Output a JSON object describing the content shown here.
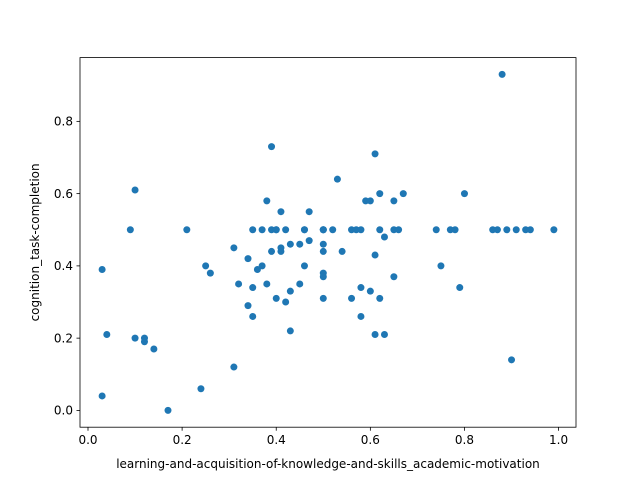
{
  "chart_data": {
    "type": "scatter",
    "title": "",
    "xlabel": "learning-and-acquisition-of-knowledge-and-skills_academic-motivation",
    "ylabel": "cognition_task-completion",
    "xlim": [
      -0.017,
      1.037
    ],
    "ylim": [
      -0.0465,
      0.9765
    ],
    "xticks": [
      0.0,
      0.2,
      0.4,
      0.6,
      0.8,
      1.0
    ],
    "xtick_labels": [
      "0.0",
      "0.2",
      "0.4",
      "0.6",
      "0.8",
      "1.0"
    ],
    "yticks": [
      0.0,
      0.2,
      0.4,
      0.6,
      0.8
    ],
    "ytick_labels": [
      "0.0",
      "0.2",
      "0.4",
      "0.6",
      "0.8"
    ],
    "grid": false,
    "marker_color": "#1f77b4",
    "x": [
      0.03,
      0.03,
      0.04,
      0.09,
      0.1,
      0.1,
      0.12,
      0.12,
      0.14,
      0.17,
      0.21,
      0.24,
      0.25,
      0.26,
      0.31,
      0.31,
      0.32,
      0.34,
      0.34,
      0.35,
      0.35,
      0.35,
      0.36,
      0.37,
      0.37,
      0.38,
      0.38,
      0.39,
      0.39,
      0.39,
      0.4,
      0.4,
      0.4,
      0.41,
      0.41,
      0.41,
      0.42,
      0.42,
      0.43,
      0.43,
      0.43,
      0.45,
      0.45,
      0.46,
      0.46,
      0.46,
      0.47,
      0.47,
      0.5,
      0.5,
      0.5,
      0.5,
      0.5,
      0.5,
      0.5,
      0.5,
      0.52,
      0.53,
      0.54,
      0.56,
      0.56,
      0.57,
      0.58,
      0.58,
      0.58,
      0.59,
      0.6,
      0.6,
      0.61,
      0.61,
      0.61,
      0.62,
      0.62,
      0.62,
      0.63,
      0.63,
      0.65,
      0.65,
      0.65,
      0.66,
      0.67,
      0.74,
      0.75,
      0.77,
      0.78,
      0.79,
      0.8,
      0.86,
      0.87,
      0.88,
      0.89,
      0.9,
      0.91,
      0.93,
      0.94,
      0.99
    ],
    "y": [
      0.04,
      0.39,
      0.21,
      0.5,
      0.2,
      0.61,
      0.19,
      0.2,
      0.17,
      0.0,
      0.5,
      0.06,
      0.4,
      0.38,
      0.12,
      0.45,
      0.35,
      0.42,
      0.29,
      0.26,
      0.34,
      0.5,
      0.39,
      0.4,
      0.5,
      0.58,
      0.35,
      0.73,
      0.5,
      0.44,
      0.31,
      0.5,
      0.5,
      0.45,
      0.55,
      0.44,
      0.3,
      0.5,
      0.22,
      0.33,
      0.46,
      0.35,
      0.46,
      0.5,
      0.4,
      0.5,
      0.47,
      0.55,
      0.5,
      0.5,
      0.44,
      0.46,
      0.38,
      0.37,
      0.31,
      0.5,
      0.5,
      0.64,
      0.44,
      0.5,
      0.31,
      0.5,
      0.5,
      0.34,
      0.26,
      0.58,
      0.58,
      0.33,
      0.71,
      0.43,
      0.21,
      0.6,
      0.5,
      0.31,
      0.48,
      0.21,
      0.58,
      0.5,
      0.37,
      0.5,
      0.6,
      0.5,
      0.4,
      0.5,
      0.5,
      0.34,
      0.6,
      0.5,
      0.5,
      0.93,
      0.5,
      0.14,
      0.5,
      0.5,
      0.5,
      0.5
    ]
  }
}
